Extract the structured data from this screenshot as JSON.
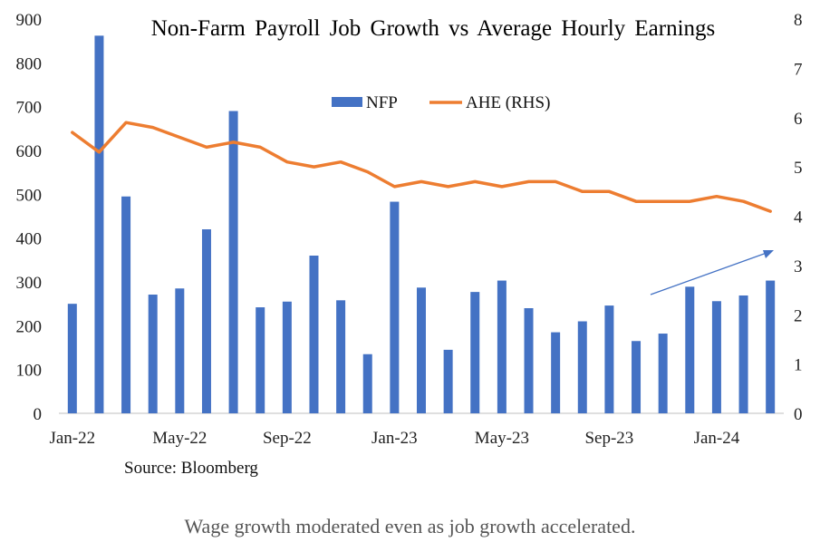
{
  "chart_data": {
    "type": "bar+line",
    "title": "Non-Farm Payroll Job Growth vs Average Hourly Earnings",
    "source": "Source: Bloomberg",
    "x": [
      "Jan-22",
      "Feb-22",
      "Mar-22",
      "Apr-22",
      "May-22",
      "Jun-22",
      "Jul-22",
      "Aug-22",
      "Sep-22",
      "Oct-22",
      "Nov-22",
      "Dec-22",
      "Jan-23",
      "Feb-23",
      "Mar-23",
      "Apr-23",
      "May-23",
      "Jun-23",
      "Jul-23",
      "Aug-23",
      "Sep-23",
      "Oct-23",
      "Nov-23",
      "Dec-23",
      "Jan-24",
      "Feb-24",
      "Mar-24"
    ],
    "x_tick_labels": [
      "Jan-22",
      "May-22",
      "Sep-22",
      "Jan-23",
      "May-23",
      "Sep-23",
      "Jan-24"
    ],
    "x_tick_every": 4,
    "series": [
      {
        "name": "NFP",
        "type": "bar",
        "axis": "left",
        "color": "#4472C4",
        "values": [
          250,
          862,
          495,
          271,
          285,
          420,
          690,
          242,
          255,
          360,
          258,
          135,
          483,
          287,
          145,
          277,
          303,
          240,
          185,
          210,
          246,
          165,
          182,
          289,
          256,
          269,
          303
        ]
      },
      {
        "name": "AHE (RHS)",
        "type": "line",
        "axis": "right",
        "color": "#ED7D31",
        "values": [
          5.7,
          5.3,
          5.9,
          5.8,
          5.6,
          5.4,
          5.5,
          5.4,
          5.1,
          5.0,
          5.1,
          4.9,
          4.6,
          4.7,
          4.6,
          4.7,
          4.6,
          4.7,
          4.7,
          4.5,
          4.5,
          4.3,
          4.3,
          4.3,
          4.4,
          4.3,
          4.1
        ]
      }
    ],
    "y_left": {
      "min": 0,
      "max": 900,
      "ticks": [
        0,
        100,
        200,
        300,
        400,
        500,
        600,
        700,
        800,
        900
      ]
    },
    "y_right": {
      "min": 0,
      "max": 8,
      "ticks": [
        0,
        1,
        2,
        3,
        4,
        5,
        6,
        7,
        8
      ]
    },
    "legend_position": "top-center",
    "grid": false,
    "annotation": {
      "type": "arrow",
      "color": "#4472C4",
      "meaning": "upward trend in recent NFP"
    }
  },
  "caption": "Wage growth moderated even as job growth accelerated."
}
